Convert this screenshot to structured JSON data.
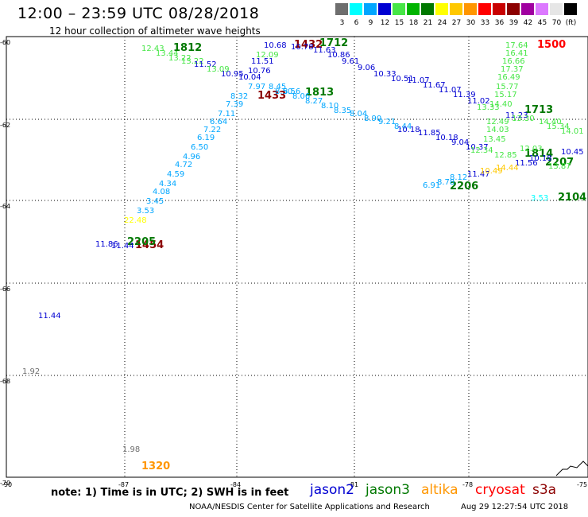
{
  "header": {
    "title": "12:00 – 23:59 UTC 08/28/2018",
    "subtitle": "12 hour collection of altimeter wave heights"
  },
  "legend": {
    "swatches": [
      {
        "label": "3",
        "color": "#6e6e6e"
      },
      {
        "label": "6",
        "color": "#00ffff"
      },
      {
        "label": "9",
        "color": "#00a6ff"
      },
      {
        "label": "12",
        "color": "#0000d2"
      },
      {
        "label": "15",
        "color": "#46e646"
      },
      {
        "label": "18",
        "color": "#00b400"
      },
      {
        "label": "21",
        "color": "#007800"
      },
      {
        "label": "24",
        "color": "#ffff00"
      },
      {
        "label": "27",
        "color": "#ffc800"
      },
      {
        "label": "30",
        "color": "#ff9600"
      },
      {
        "label": "33",
        "color": "#ff0000"
      },
      {
        "label": "36",
        "color": "#c80000"
      },
      {
        "label": "39",
        "color": "#8c0000"
      },
      {
        "label": "42",
        "color": "#a000a0"
      },
      {
        "label": "45",
        "color": "#dc78ff"
      },
      {
        "label": "70",
        "color": "#e6e6e6"
      },
      {
        "label": "(ft)",
        "color": "#000000"
      }
    ]
  },
  "axes": {
    "lat_ticks": [
      "-60",
      "-62",
      "-64",
      "-66",
      "-68",
      "-70"
    ],
    "lon_ticks": [
      "-90",
      "-87",
      "-84",
      "-81",
      "-78",
      "-75"
    ]
  },
  "tracks": [
    {
      "color": "#46e646",
      "values": [
        "12.43",
        "13.44",
        "13.22",
        "13.22"
      ],
      "time": "1812",
      "time_color": "#007800"
    },
    {
      "color": "#0000d2",
      "values": [
        "11.52",
        "10.95",
        "10.76",
        "11.51",
        "10.68",
        "10.04"
      ]
    },
    {
      "color": "#46e646",
      "values": [
        "12.09",
        "13.09"
      ]
    },
    {
      "color": "#00a6ff",
      "values": [
        "8.56",
        "8.45",
        "7.97",
        "8.32",
        "7.39",
        "7.11",
        "6.64",
        "7.22",
        "6.19",
        "6.50",
        "4.96",
        "4.72",
        "4.59",
        "4.34",
        "4.08",
        "3.45",
        "3.53"
      ]
    },
    {
      "color": "#ffff00",
      "values": [
        "22.48"
      ]
    },
    {
      "color": "#8c0000",
      "values": [
        "1433",
        "1432",
        "1454"
      ]
    },
    {
      "color": "#007800",
      "values": [
        "1813",
        "1712",
        "1713",
        "1814",
        "2206",
        "2205",
        "2207",
        "2104"
      ]
    },
    {
      "color": "#00a6ff",
      "values": [
        "8.50",
        "8.06",
        "8.27",
        "8.10",
        "8.35",
        "8.04",
        "8.90",
        "8.44",
        "9.21",
        "6.91",
        "8.78",
        "8.12"
      ]
    },
    {
      "color": "#0000d2",
      "values": [
        "11.44",
        "11.63",
        "10.86",
        "9.61",
        "9.06",
        "10.33",
        "10.51",
        "11.07",
        "11.67",
        "11.07",
        "11.39",
        "11.02",
        "11.23",
        "11.85",
        "10.18",
        "9.04",
        "10.37",
        "11.47",
        "11.56",
        "10.45",
        "10.78",
        "10.18",
        "11.86",
        "11.44",
        "10.18"
      ]
    },
    {
      "color": "#46e646",
      "values": [
        "17.64",
        "16.41",
        "16.66",
        "17.37",
        "16.49",
        "15.77",
        "15.17",
        "14.40",
        "13.33",
        "12.49",
        "14.03",
        "13.45",
        "12.34",
        "12.85",
        "13.30",
        "15.34",
        "14.40",
        "14.01",
        "13.87",
        "12.03"
      ]
    },
    {
      "color": "#ffc800",
      "values": [
        "10.49",
        "14.44"
      ]
    },
    {
      "color": "#00ffff",
      "values": [
        "3.53"
      ]
    },
    {
      "color": "#ff0000",
      "values": [
        "1500"
      ]
    },
    {
      "color": "#6e6e6e",
      "values": [
        "1.98",
        "1.92"
      ]
    },
    {
      "color": "#ff9600",
      "values": [
        "1320"
      ]
    }
  ],
  "footer": {
    "note": "note: 1) Time is in UTC; 2) SWH is in feet",
    "satellites": [
      {
        "name": "jason2",
        "color": "#0000d2"
      },
      {
        "name": "jason3",
        "color": "#007800"
      },
      {
        "name": "altika",
        "color": "#ff9600"
      },
      {
        "name": "cryosat",
        "color": "#ff0000"
      },
      {
        "name": "s3a",
        "color": "#8c0000"
      }
    ],
    "credit": "NOAA/NESDIS Center for Satellite Applications and Research",
    "timestamp": "Aug 29 12:27:54 UTC 2018"
  }
}
